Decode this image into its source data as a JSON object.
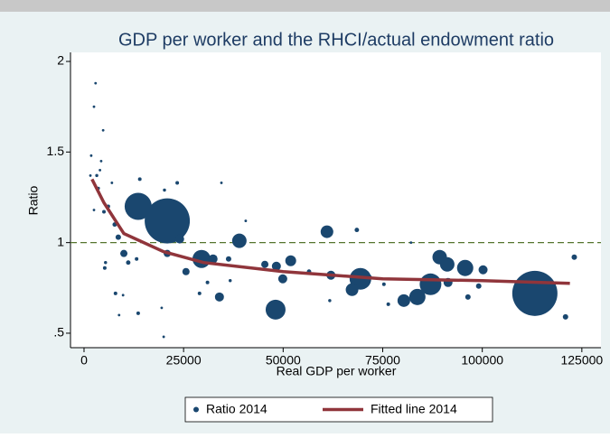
{
  "chart_data": {
    "type": "scatter",
    "title": "GDP per worker and the RHCI/actual endowment ratio",
    "x_label": "Real GDP per worker",
    "y_label": "Ratio",
    "xlim": [
      -3400,
      129800
    ],
    "ylim": [
      0.42,
      2.05
    ],
    "xticks": [
      0,
      25000,
      50000,
      75000,
      100000,
      125000
    ],
    "yticks": [
      {
        "value": 0.5,
        "label": ".5"
      },
      1,
      1.5,
      2
    ],
    "reference_line": 1,
    "series": [
      {
        "name": "Ratio 2014",
        "color": "#1a476f",
        "x": [
          2900,
          2500,
          4800,
          1800,
          4300,
          4000,
          3200,
          1600,
          3600,
          7000,
          14000,
          23400,
          13600,
          20900,
          20200,
          6100,
          5000,
          7700,
          2500,
          8600,
          24000,
          29500,
          32400,
          25600,
          36300,
          39000,
          40600,
          34500,
          10000,
          11100,
          13200,
          5200,
          5400,
          7900,
          9800,
          13600,
          8800,
          20000,
          19500,
          29000,
          34000,
          36700,
          31000,
          45400,
          48300,
          51900,
          48100,
          49900,
          56500,
          61000,
          62000,
          61700,
          68500,
          69400,
          67300,
          71700,
          80300,
          83700,
          87000,
          89300,
          91200,
          91400,
          95700,
          96400,
          100200,
          99100,
          113200,
          120900,
          123100,
          82100,
          75300,
          76400,
          20900
        ],
        "values": [
          1.88,
          1.75,
          1.62,
          1.48,
          1.45,
          1.4,
          1.37,
          1.37,
          1.3,
          1.33,
          1.35,
          1.33,
          1.2,
          1.12,
          1.29,
          1.2,
          1.17,
          1.1,
          1.18,
          1.03,
          1.02,
          0.91,
          0.91,
          0.84,
          0.91,
          1.01,
          1.12,
          1.33,
          0.94,
          0.89,
          0.91,
          0.86,
          0.89,
          0.72,
          0.71,
          0.61,
          0.6,
          0.48,
          0.64,
          0.72,
          0.7,
          0.79,
          0.78,
          0.88,
          0.87,
          0.9,
          0.63,
          0.8,
          0.84,
          1.06,
          0.82,
          0.68,
          1.07,
          0.8,
          0.74,
          0.81,
          0.68,
          0.7,
          0.77,
          0.92,
          0.88,
          0.78,
          0.86,
          0.7,
          0.85,
          0.76,
          0.72,
          0.59,
          0.92,
          1.0,
          0.77,
          0.66,
          0.94
        ],
        "sizes": [
          2,
          2,
          2,
          2,
          2,
          2,
          3,
          2,
          3,
          2,
          4,
          4,
          225,
          625,
          3,
          4,
          4,
          6,
          2,
          9,
          25,
          100,
          25,
          16,
          9,
          64,
          2,
          2,
          16,
          6,
          4,
          4,
          3,
          4,
          2,
          4,
          2,
          2,
          2,
          4,
          25,
          3,
          4,
          16,
          25,
          36,
          121,
          25,
          6,
          49,
          25,
          3,
          6,
          144,
          49,
          6,
          49,
          81,
          144,
          64,
          64,
          25,
          81,
          9,
          25,
          9,
          625,
          9,
          9,
          2,
          4,
          4,
          16
        ]
      },
      {
        "name": "Fitted line 2014",
        "color": "#90353b",
        "type": "line",
        "x": [
          2000,
          5000,
          10000,
          20000,
          30000,
          50000,
          75000,
          100000,
          122000
        ],
        "values": [
          1.35,
          1.22,
          1.05,
          0.95,
          0.89,
          0.84,
          0.8,
          0.79,
          0.775
        ]
      }
    ]
  }
}
